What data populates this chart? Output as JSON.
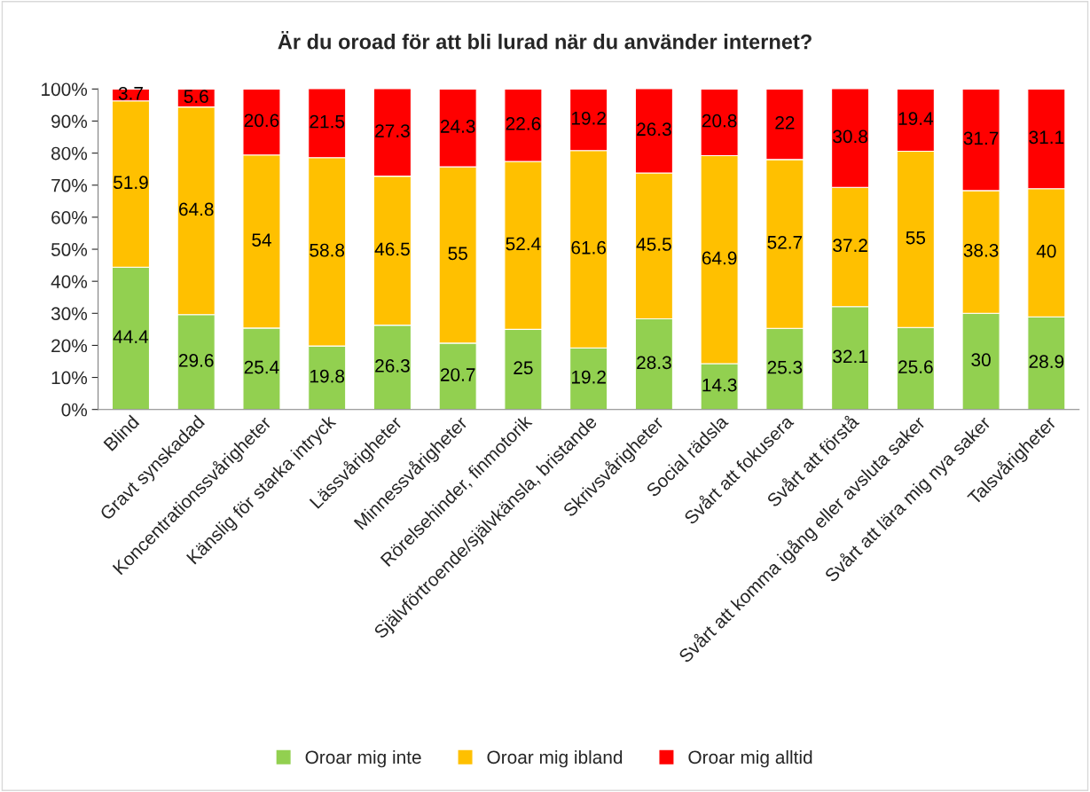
{
  "chart_data": {
    "type": "bar",
    "title": "Är du oroad för att bli lurad när du använder internet?",
    "categories": [
      "Blind",
      "Gravt synskadad",
      "Koncentrationssvårigheter",
      "Känslig för starka intryck",
      "Lässvårigheter",
      "Minnessvårigheter",
      "Rörelsehinder, finmotorik",
      "Självförtroende/självkänsla, bristande",
      "Skrivsvårigheter",
      "Social rädsla",
      "Svårt att fokusera",
      "Svårt att förstå",
      "Svårt att komma igång eller avsluta saker",
      "Svårt att lära mig nya saker",
      "Talsvårigheter"
    ],
    "stacked": true,
    "series": [
      {
        "name": "Oroar mig inte",
        "color": "#92d050",
        "values": [
          44.4,
          29.6,
          25.4,
          19.8,
          26.3,
          20.7,
          25,
          19.2,
          28.3,
          14.3,
          25.3,
          32.1,
          25.6,
          30,
          28.9
        ]
      },
      {
        "name": "Oroar mig ibland",
        "color": "#ffc000",
        "values": [
          51.9,
          64.8,
          54,
          58.8,
          46.5,
          55,
          52.4,
          61.6,
          45.5,
          64.9,
          52.7,
          37.2,
          55,
          38.3,
          40
        ]
      },
      {
        "name": "Oroar mig alltid",
        "color": "#ff0000",
        "values": [
          3.7,
          5.6,
          20.6,
          21.5,
          27.3,
          24.3,
          22.6,
          19.2,
          26.3,
          20.8,
          22,
          30.8,
          19.4,
          31.7,
          31.1
        ]
      }
    ],
    "ylim": [
      0,
      100.1
    ],
    "yticks": [
      {
        "value": 0,
        "label": "0%"
      },
      {
        "value": 10,
        "label": "10%"
      },
      {
        "value": 20,
        "label": "20%"
      },
      {
        "value": 30,
        "label": "30%"
      },
      {
        "value": 40,
        "label": "40%"
      },
      {
        "value": 50,
        "label": "50%"
      },
      {
        "value": 60,
        "label": "60%"
      },
      {
        "value": 70,
        "label": "70%"
      },
      {
        "value": 80,
        "label": "80%"
      },
      {
        "value": 90,
        "label": "90%"
      },
      {
        "value": 100,
        "label": "100%"
      }
    ],
    "data_labels": true,
    "grid": false,
    "legend": "bottom"
  }
}
